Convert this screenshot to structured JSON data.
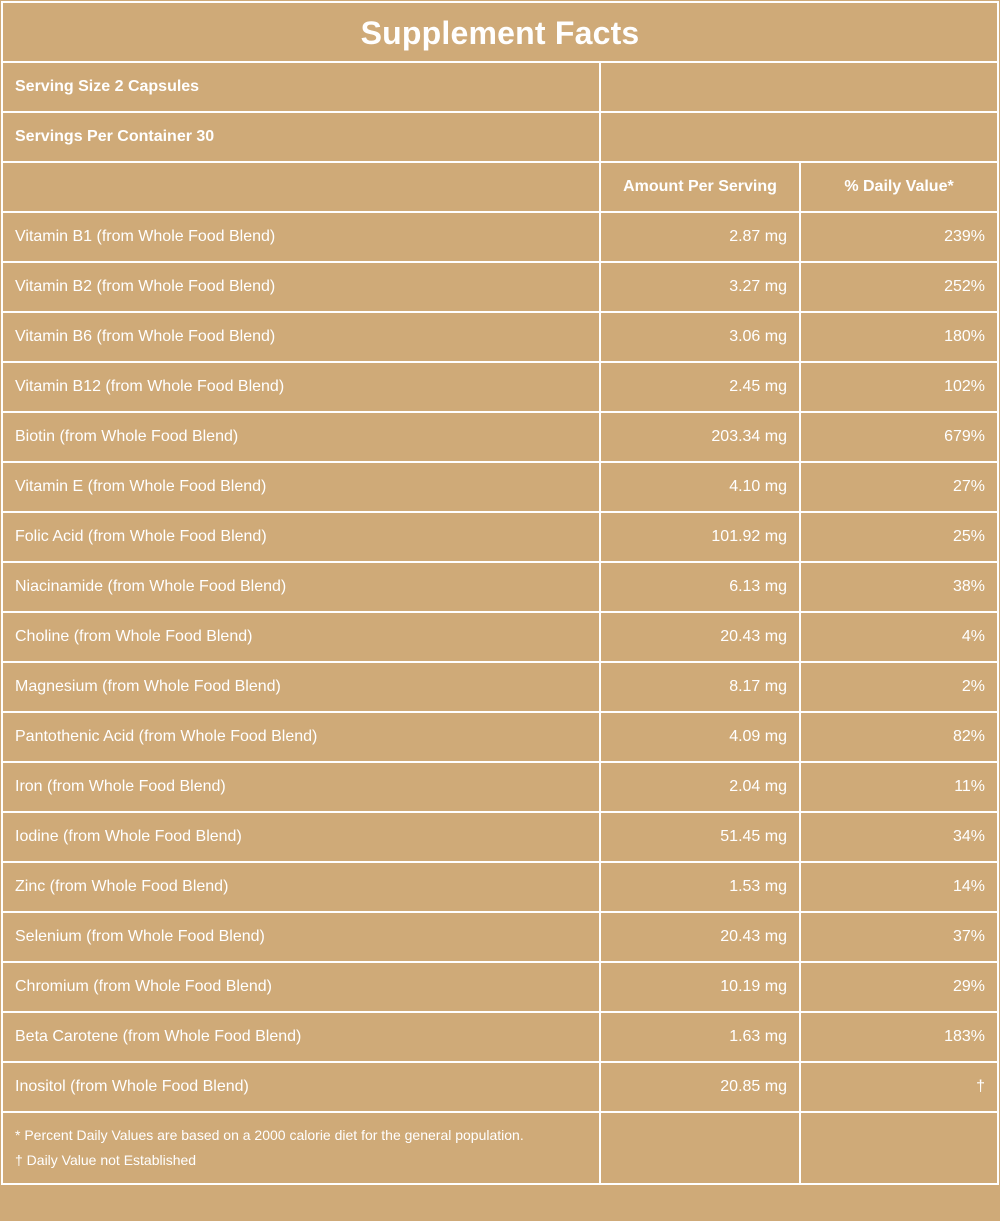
{
  "title": "Supplement Facts",
  "serving_size": "Serving Size 2 Capsules",
  "servings_per_container": "Servings Per Container 30",
  "headers": {
    "amount": "Amount Per Serving",
    "daily_value": "% Daily Value*"
  },
  "nutrients": [
    {
      "name": "Vitamin B1 (from Whole Food Blend)",
      "amount": "2.87 mg",
      "dv": "239%"
    },
    {
      "name": "Vitamin B2 (from Whole Food Blend)",
      "amount": "3.27 mg",
      "dv": "252%"
    },
    {
      "name": "Vitamin B6 (from Whole Food Blend)",
      "amount": "3.06 mg",
      "dv": "180%"
    },
    {
      "name": "Vitamin B12 (from Whole Food Blend)",
      "amount": "2.45 mg",
      "dv": "102%"
    },
    {
      "name": "Biotin (from Whole Food Blend)",
      "amount": "203.34 mg",
      "dv": "679%"
    },
    {
      "name": "Vitamin E (from Whole Food Blend)",
      "amount": "4.10 mg",
      "dv": "27%"
    },
    {
      "name": "Folic Acid (from Whole Food Blend)",
      "amount": "101.92 mg",
      "dv": "25%"
    },
    {
      "name": "Niacinamide (from Whole Food Blend)",
      "amount": "6.13 mg",
      "dv": "38%"
    },
    {
      "name": "Choline (from Whole Food Blend)",
      "amount": "20.43 mg",
      "dv": "4%"
    },
    {
      "name": "Magnesium (from Whole Food Blend)",
      "amount": "8.17 mg",
      "dv": "2%"
    },
    {
      "name": "Pantothenic Acid (from Whole Food Blend)",
      "amount": "4.09 mg",
      "dv": "82%"
    },
    {
      "name": "Iron (from Whole Food Blend)",
      "amount": "2.04 mg",
      "dv": "11%"
    },
    {
      "name": "Iodine (from Whole Food Blend)",
      "amount": "51.45 mg",
      "dv": "34%"
    },
    {
      "name": "Zinc (from Whole Food Blend)",
      "amount": "1.53 mg",
      "dv": "14%"
    },
    {
      "name": "Selenium (from Whole Food Blend)",
      "amount": "20.43 mg",
      "dv": "37%"
    },
    {
      "name": "Chromium (from Whole Food Blend)",
      "amount": "10.19 mg",
      "dv": "29%"
    },
    {
      "name": "Beta Carotene (from Whole Food Blend)",
      "amount": "1.63 mg",
      "dv": "183%"
    },
    {
      "name": "Inositol (from Whole Food Blend)",
      "amount": "20.85 mg",
      "dv": "†"
    }
  ],
  "footnotes": [
    "* Percent Daily Values are based on a 2000 calorie diet for the general population.",
    "† Daily Value not Established"
  ],
  "colors": {
    "background": "#cfaa78",
    "lines": "#ffffff",
    "text": "#ffffff"
  }
}
